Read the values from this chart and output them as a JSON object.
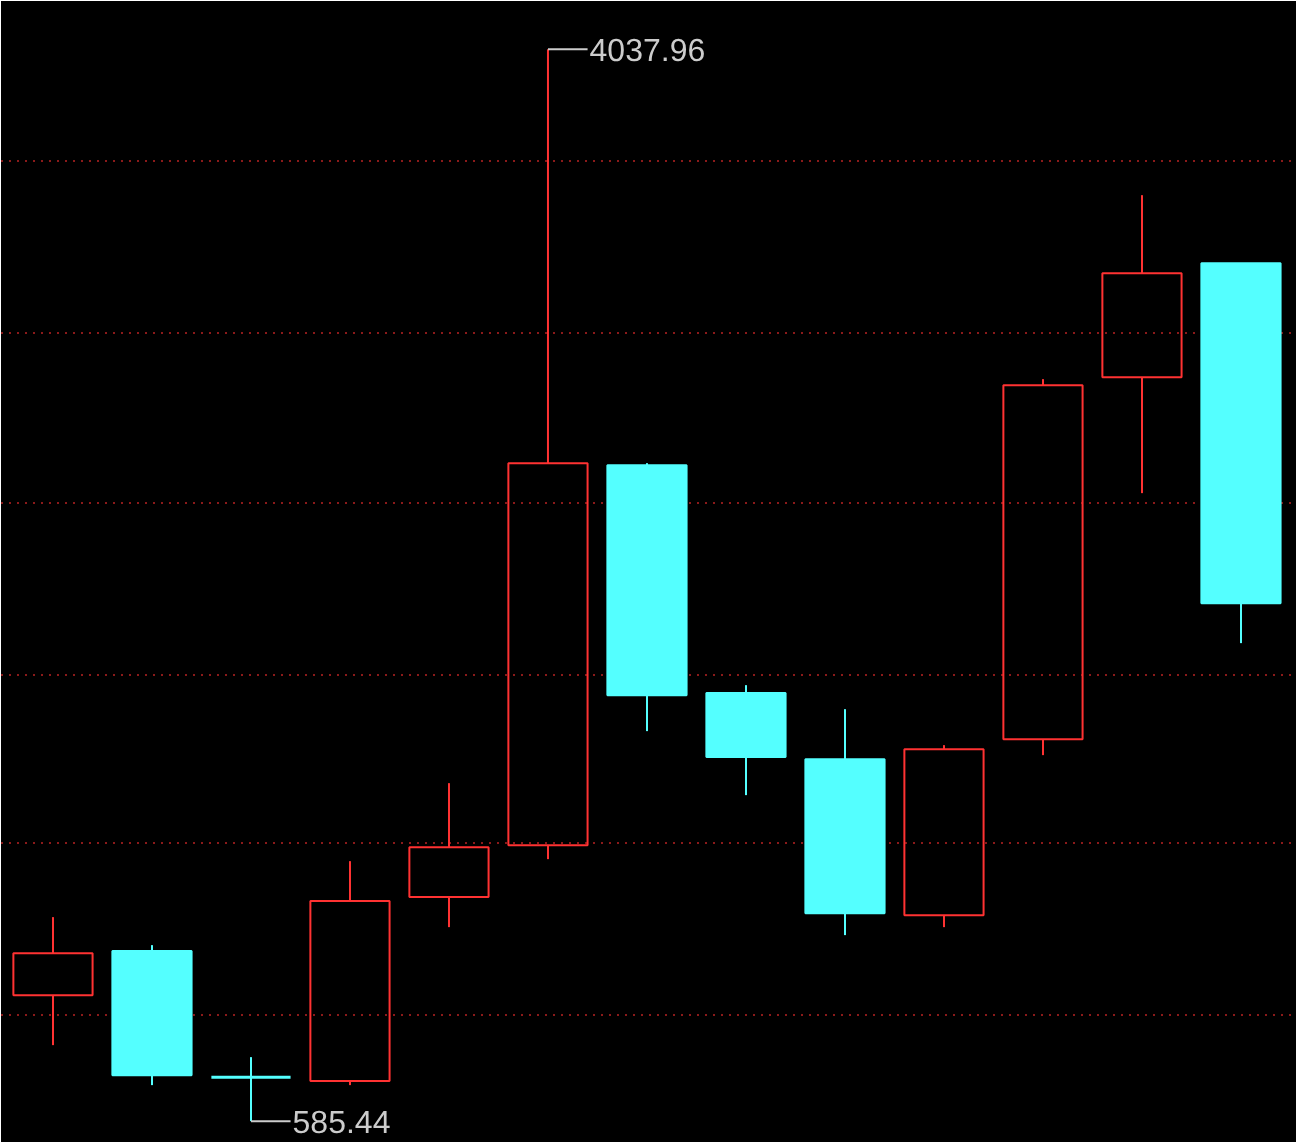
{
  "chart_data": {
    "type": "candlestick",
    "categories": [
      null,
      null,
      null,
      null,
      null,
      null,
      null,
      null,
      null,
      null,
      null,
      null,
      null
    ],
    "ohlc": [
      [
        991.2,
        1242.5,
        830.2,
        1126.5
      ],
      [
        1133.0,
        1152.3,
        701.4,
        733.6
      ],
      [
        727.1,
        791.6,
        585.44,
        727.1
      ],
      [
        714.3,
        1422.8,
        701.4,
        1294.0
      ],
      [
        1306.9,
        1674.0,
        1210.2,
        1467.9
      ],
      [
        1474.3,
        4037.96,
        1429.2,
        2704.6
      ],
      [
        2698.2,
        2704.6,
        1841.5,
        1957.4
      ],
      [
        1963.9,
        1989.6,
        1635.4,
        1757.8
      ],
      [
        1751.3,
        1912.3,
        1184.5,
        1255.3
      ],
      [
        1248.9,
        1796.4,
        1210.2,
        1783.5
      ],
      [
        1815.7,
        2975.2,
        1764.2,
        2955.8
      ],
      [
        2981.6,
        3567.7,
        2608.0,
        3316.5
      ],
      [
        3348.7,
        3348.7,
        2124.9,
        2253.7
      ]
    ],
    "colors": [
      "#ff3232",
      "#54ffff",
      "#54ffff",
      "#ff3232",
      "#ff3232",
      "#ff3232",
      "#54ffff",
      "#54ffff",
      "#54ffff",
      "#ff3232",
      "#ff3232",
      "#ff3232",
      "#54ffff"
    ],
    "ylim": [
      515,
      4193
    ],
    "yticks": [
      {
        "value": 926.8,
        "label": null
      },
      {
        "value": 1480.8,
        "label": null
      },
      {
        "value": 2021.9,
        "label": null
      },
      {
        "value": 2575.8,
        "label": null
      },
      {
        "value": 3123.3,
        "label": null
      },
      {
        "value": 3677.3,
        "label": null
      }
    ],
    "grid": "y",
    "annotations": [
      "4037.96",
      "585.44"
    ]
  }
}
